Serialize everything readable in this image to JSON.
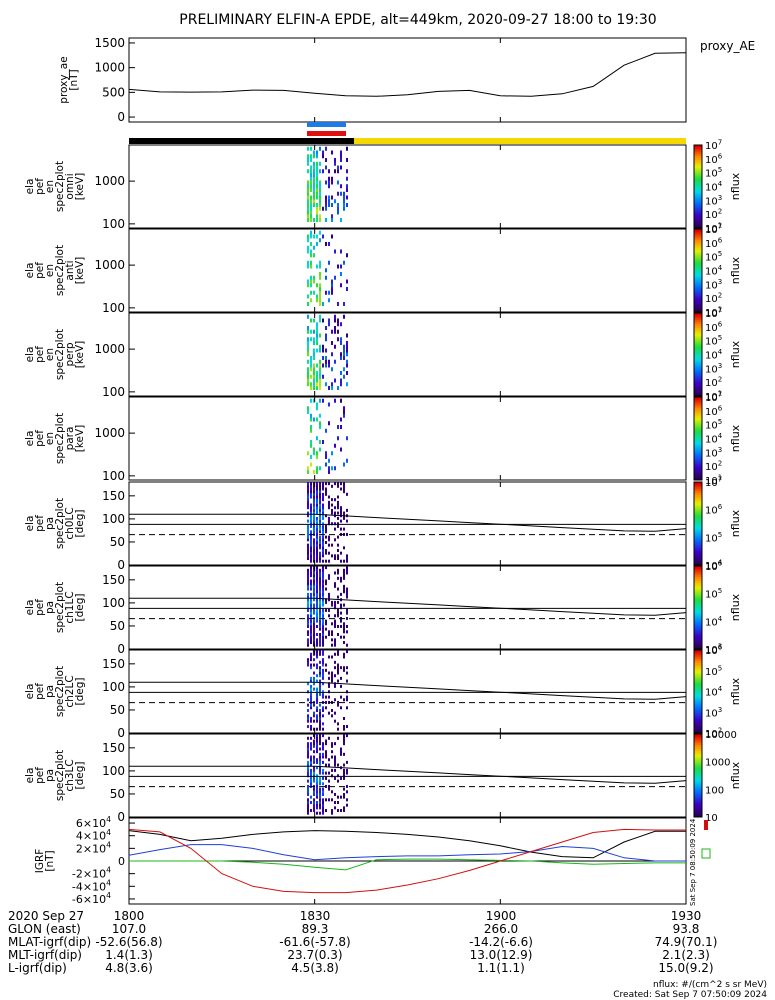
{
  "title": "PRELIMINARY ELFIN-A EPDE, alt=449km, 2020-09-27 18:00 to 19:30",
  "colors": {
    "night_bar": "#000000",
    "day_bar": "#f5d800",
    "science_zone_blue": "#1e7be6",
    "science_zone_red": "#e01010",
    "ae_line": "#000000",
    "grf_x": "#000000",
    "grf_y": "#1f3fd6",
    "grf_z": "#18b818",
    "grf_total": "#d01010"
  },
  "footer": {
    "row_labels": [
      "2020 Sep 27",
      "GLON (east)",
      "MLAT-igrf(dip)",
      "MLT-igrf(dip)",
      "L-igrf(dip)"
    ],
    "columns": [
      {
        "time": "1800",
        "glon": "107.0",
        "mlat": "-52.6(56.8)",
        "mlt": "1.4(1.3)",
        "l": "4.8(3.6)"
      },
      {
        "time": "1830",
        "glon": "89.3",
        "mlat": "-61.6(-57.8)",
        "mlt": "23.7(0.3)",
        "l": "4.5(3.8)"
      },
      {
        "time": "1900",
        "glon": "266.0",
        "mlat": "-14.2(-6.6)",
        "mlt": "13.0(12.9)",
        "l": "1.1(1.1)"
      },
      {
        "time": "1930",
        "glon": "93.8",
        "mlat": "74.9(70.1)",
        "mlt": "2.1(2.3)",
        "l": "15.0(9.2)"
      }
    ],
    "units_note": "nflux: #/(cm^2 s sr MeV)",
    "created": "Created: Sat Sep  7 07:50:09 2024",
    "side_stamp": "Sat Sep  7 08:50:09 2024"
  },
  "chart_data": [
    {
      "type": "line",
      "panel": "proxy_ae",
      "ylabel": [
        "proxy_ae",
        "[nT]"
      ],
      "legend": "proxy_AE",
      "ylim": [
        -100,
        1600
      ],
      "yticks": [
        0,
        500,
        1000,
        1500
      ],
      "x_minutes": [
        0,
        5,
        10,
        15,
        20,
        25,
        30,
        35,
        40,
        45,
        50,
        55,
        60,
        65,
        70,
        75,
        80,
        85,
        90
      ],
      "values": [
        560,
        510,
        505,
        510,
        545,
        540,
        480,
        430,
        420,
        450,
        520,
        540,
        430,
        420,
        470,
        620,
        1050,
        1290,
        1300
      ]
    },
    {
      "type": "heatmap",
      "panel": "spec_omni",
      "ylabel": [
        "ela",
        "pef",
        "en",
        "spec2plot",
        "omni",
        "[keV]"
      ],
      "yscale": "log",
      "ylim": [
        80,
        7000
      ],
      "yticks": [
        100,
        1000
      ],
      "colorbar": {
        "label": "nflux",
        "scale": "log",
        "ticks": [
          "10^1",
          "10^2",
          "10^3",
          "10^4",
          "10^5",
          "10^6",
          "10^7"
        ]
      }
    },
    {
      "type": "heatmap",
      "panel": "spec_anti",
      "ylabel": [
        "ela",
        "pef",
        "en",
        "spec2plot",
        "anti",
        "[keV]"
      ],
      "yscale": "log",
      "ylim": [
        80,
        7000
      ],
      "yticks": [
        100,
        1000
      ],
      "colorbar": {
        "label": "nflux",
        "scale": "log",
        "ticks": [
          "10^1",
          "10^2",
          "10^3",
          "10^4",
          "10^5",
          "10^6",
          "10^7"
        ]
      }
    },
    {
      "type": "heatmap",
      "panel": "spec_perp",
      "ylabel": [
        "ela",
        "pef",
        "en",
        "spec2plot",
        "perp",
        "[keV]"
      ],
      "yscale": "log",
      "ylim": [
        80,
        7000
      ],
      "yticks": [
        100,
        1000
      ],
      "colorbar": {
        "label": "nflux",
        "scale": "log",
        "ticks": [
          "10^1",
          "10^2",
          "10^3",
          "10^4",
          "10^5",
          "10^6",
          "10^7"
        ]
      }
    },
    {
      "type": "heatmap",
      "panel": "spec_para",
      "ylabel": [
        "ela",
        "pef",
        "en",
        "spec2plot",
        "para",
        "[keV]"
      ],
      "yscale": "log",
      "ylim": [
        80,
        7000
      ],
      "yticks": [
        100,
        1000
      ],
      "colorbar": {
        "label": "nflux",
        "scale": "log",
        "ticks": [
          "10^1",
          "10^2",
          "10^3",
          "10^4",
          "10^5",
          "10^6",
          "10^7"
        ]
      }
    },
    {
      "type": "heatmap",
      "panel": "pa_ch0",
      "ylabel": [
        "ela",
        "pef",
        "pa",
        "spec2plot",
        "ch0LC",
        "[deg]"
      ],
      "ylim": [
        0,
        180
      ],
      "yticks": [
        0,
        50,
        100,
        150
      ],
      "colorbar": {
        "label": "nflux",
        "scale": "log",
        "ticks": [
          "10^4",
          "10^5",
          "10^6",
          "10^7"
        ]
      }
    },
    {
      "type": "heatmap",
      "panel": "pa_ch1",
      "ylabel": [
        "ela",
        "pef",
        "pa",
        "spec2plot",
        "ch1LC",
        "[deg]"
      ],
      "ylim": [
        0,
        180
      ],
      "yticks": [
        0,
        50,
        100,
        150
      ],
      "colorbar": {
        "label": "nflux",
        "scale": "log",
        "ticks": [
          "10^3",
          "10^4",
          "10^5",
          "10^6"
        ]
      }
    },
    {
      "type": "heatmap",
      "panel": "pa_ch2",
      "ylabel": [
        "ela",
        "pef",
        "pa",
        "spec2plot",
        "ch2LC",
        "[deg]"
      ],
      "ylim": [
        0,
        180
      ],
      "yticks": [
        0,
        50,
        100,
        150
      ],
      "colorbar": {
        "label": "nflux",
        "scale": "log",
        "ticks": [
          "10^2",
          "10^3",
          "10^4",
          "10^5",
          "10^6"
        ]
      }
    },
    {
      "type": "heatmap",
      "panel": "pa_ch3",
      "ylabel": [
        "ela",
        "pef",
        "pa",
        "spec2plot",
        "ch3LC",
        "[deg]"
      ],
      "ylim": [
        0,
        180
      ],
      "yticks": [
        0,
        50,
        100,
        150
      ],
      "colorbar": {
        "label": "nflux",
        "scale": "log",
        "ticks": [
          "10",
          "100",
          "1000",
          "10000"
        ]
      }
    },
    {
      "type": "line",
      "panel": "grf",
      "ylabel": [
        "IGRF",
        "[nT]"
      ],
      "ylim": [
        -68000,
        68000
      ],
      "yticks": [
        "-6×10^4",
        "-4×10^4",
        "-2×10^4",
        "0",
        "2×10^4",
        "4×10^4",
        "6×10^4"
      ],
      "x_minutes": [
        0,
        5,
        10,
        15,
        20,
        25,
        30,
        35,
        40,
        45,
        50,
        55,
        60,
        65,
        70,
        75,
        80,
        85,
        90
      ],
      "series": [
        {
          "values": [
            48000,
            42000,
            32000,
            36000,
            42000,
            46000,
            48000,
            47000,
            45000,
            42000,
            38000,
            32000,
            24000,
            14000,
            7000,
            5000,
            30000,
            47000,
            47000
          ]
        },
        {
          "values": [
            9000,
            18000,
            26000,
            26000,
            20000,
            10000,
            2000,
            5000,
            7000,
            8000,
            8000,
            10000,
            11000,
            15000,
            23000,
            20000,
            5000,
            0,
            0
          ]
        },
        {
          "values": [
            0,
            0,
            0,
            0,
            -2000,
            -5000,
            -10000,
            -14000,
            2000,
            3000,
            3000,
            2000,
            1000,
            0,
            -3000,
            -5000,
            -4000,
            -3000,
            -3000
          ]
        },
        {
          "values": [
            50000,
            46000,
            20000,
            -20000,
            -40000,
            -48000,
            -50000,
            -50000,
            -46000,
            -38000,
            -28000,
            -15000,
            0,
            15000,
            30000,
            45000,
            50000,
            49000,
            49000
          ]
        }
      ]
    }
  ]
}
